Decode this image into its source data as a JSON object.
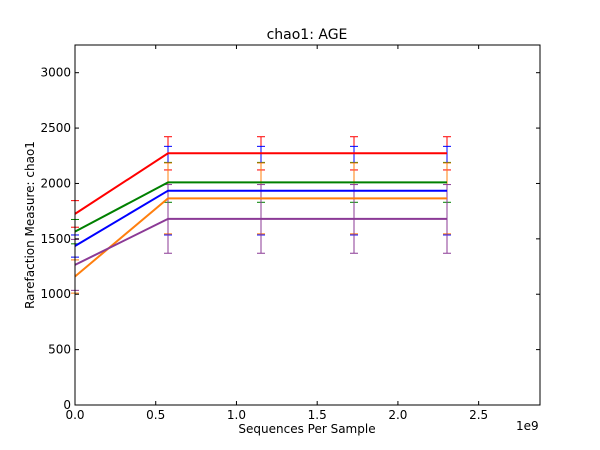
{
  "chart_data": {
    "type": "line",
    "title": "chao1: AGE",
    "xlabel": "Sequences Per Sample",
    "ylabel": "Rarefaction Measure: chao1",
    "x_offset_label": "1e9",
    "xlim": [
      0,
      2.88
    ],
    "ylim": [
      0,
      3250
    ],
    "x_ticks": [
      0.0,
      0.5,
      1.0,
      1.5,
      2.0,
      2.5
    ],
    "x_tick_labels": [
      "0.0",
      "0.5",
      "1.0",
      "1.5",
      "2.0",
      "2.5"
    ],
    "y_ticks": [
      0,
      500,
      1000,
      1500,
      2000,
      2500,
      3000
    ],
    "y_tick_labels": [
      "0",
      "500",
      "1000",
      "1500",
      "2000",
      "2500",
      "3000"
    ],
    "grid": false,
    "x": [
      0.0,
      0.576,
      1.152,
      1.728,
      2.304
    ],
    "series": [
      {
        "color": "#ff0000",
        "values": [
          1725,
          2272,
          2272,
          2272,
          2272
        ],
        "errors": [
          120,
          150,
          150,
          150,
          150
        ]
      },
      {
        "color": "#008000",
        "values": [
          1565,
          2010,
          2010,
          2010,
          2010
        ],
        "errors": [
          110,
          180,
          180,
          180,
          180
        ]
      },
      {
        "color": "#0000ff",
        "values": [
          1435,
          1935,
          1935,
          1935,
          1935
        ],
        "errors": [
          100,
          400,
          400,
          400,
          400
        ]
      },
      {
        "color": "#ff7f0e",
        "values": [
          1160,
          1865,
          1865,
          1865,
          1865
        ],
        "errors": [
          150,
          320,
          320,
          320,
          320
        ]
      },
      {
        "color": "#8b3a96",
        "values": [
          1265,
          1680,
          1680,
          1680,
          1680
        ],
        "errors": [
          230,
          310,
          310,
          310,
          310
        ]
      }
    ]
  }
}
